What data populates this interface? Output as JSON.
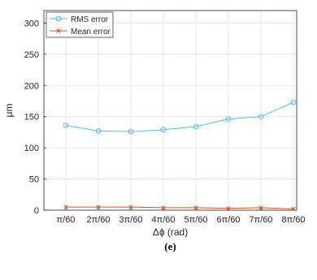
{
  "chart_data": {
    "type": "line",
    "xlabel": "Δϕ (rad)",
    "ylabel": "μm",
    "caption": "(e)",
    "categories": [
      "π/60",
      "2π/60",
      "3π/60",
      "4π/60",
      "5π/60",
      "6π/60",
      "7π/60",
      "8π/60"
    ],
    "ylim": [
      0,
      320
    ],
    "yticks": [
      0,
      50,
      100,
      150,
      200,
      250,
      300
    ],
    "grid": true,
    "legend_position": "top-left",
    "series": [
      {
        "name": "RMS error",
        "color": "#4DBEEE",
        "marker": "circle",
        "values": [
          136,
          127,
          126,
          129,
          134,
          146,
          150,
          173
        ]
      },
      {
        "name": "Mean error",
        "color": "#D95319",
        "marker": "x",
        "values": [
          5,
          5,
          5,
          4,
          4,
          3,
          4,
          2
        ]
      }
    ]
  }
}
